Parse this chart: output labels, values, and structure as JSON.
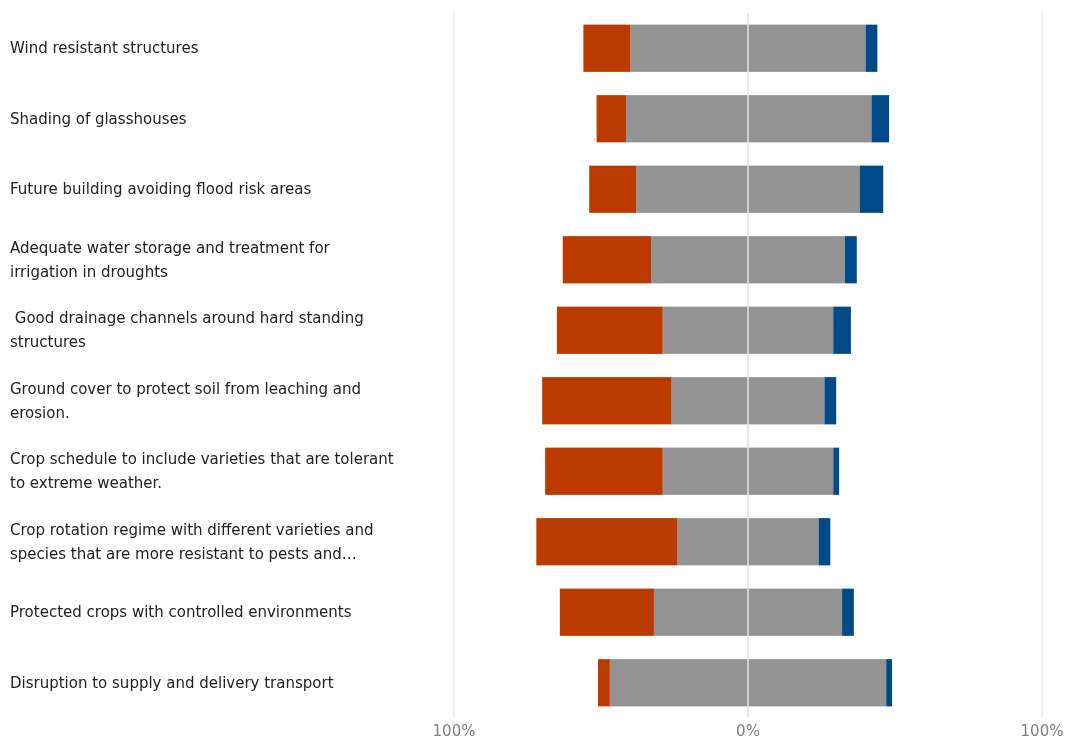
{
  "chart_data": {
    "type": "bar",
    "orientation": "horizontal",
    "stacked": true,
    "grid": "x",
    "categories": [
      "Wind resistant structures",
      "Shading of glasshouses",
      "Future building avoiding flood risk areas",
      "Adequate water storage and treatment for\nirrigation in droughts",
      " Good drainage channels around hard standing\nstructures",
      "Ground cover to protect soil from leaching and\nerosion.",
      "Crop schedule to include varieties that are tolerant\nto extreme weather.",
      "Crop rotation regime with different varieties and\nspecies that are more resistant to pests and…",
      "Protected crops with controlled environments",
      "Disruption to supply and delivery transport"
    ],
    "series": [
      {
        "color": "#939393",
        "values": [
          -40,
          -41.5,
          -38,
          -33,
          -29,
          -26,
          -29,
          -24,
          -32,
          -47
        ]
      },
      {
        "color": "#bb3a00",
        "values": [
          -16,
          -10,
          -16,
          -30,
          -36,
          -44,
          -40,
          -48,
          -32,
          -4
        ]
      },
      {
        "color": "#939393",
        "values": [
          40,
          42,
          38,
          33,
          29,
          26,
          29,
          24,
          32,
          47
        ]
      },
      {
        "color": "#004b87",
        "values": [
          4,
          6,
          8,
          4,
          6,
          4,
          2,
          4,
          4,
          2
        ]
      }
    ],
    "xlim": [
      -100,
      100
    ],
    "xticks": [
      {
        "value": -100,
        "label": "100%"
      },
      {
        "value": 0,
        "label": "0%"
      },
      {
        "value": 100,
        "label": "100%"
      }
    ]
  }
}
